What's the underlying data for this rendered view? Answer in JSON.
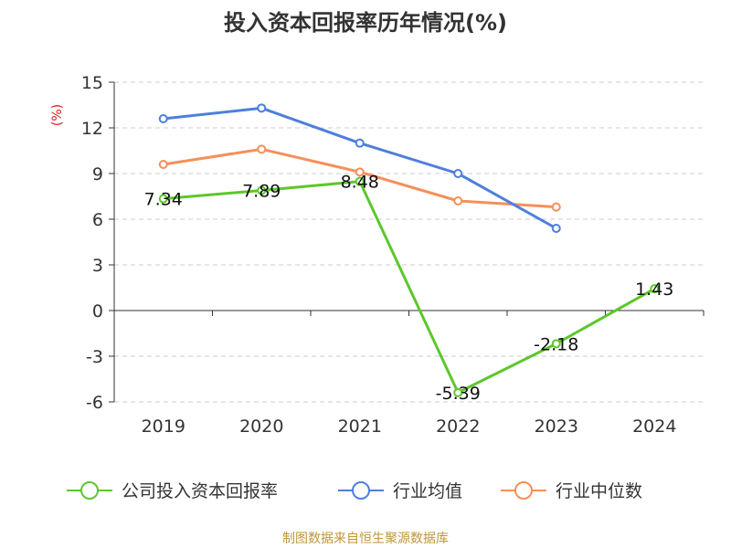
{
  "chart_data": {
    "type": "line",
    "title": "投入资本回报率历年情况(%)",
    "ylabel": "(%)",
    "categories": [
      "2019",
      "2020",
      "2021",
      "2022",
      "2023",
      "2024"
    ],
    "ylim": [
      -6,
      15
    ],
    "yticks": [
      15,
      12,
      9,
      6,
      3,
      0,
      -3,
      -6
    ],
    "grid": true,
    "legend_position": "bottom",
    "series": [
      {
        "name": "公司投入资本回报率",
        "color": "#5cc72c",
        "values": [
          7.34,
          7.89,
          8.48,
          -5.39,
          -2.18,
          1.43
        ],
        "labels": [
          "7.34",
          "7.89",
          "8.48",
          "-5.39",
          "-2.18",
          "1.43"
        ]
      },
      {
        "name": "行业均值",
        "color": "#4e7fdc",
        "values": [
          12.6,
          13.3,
          11.0,
          9.0,
          5.4,
          null
        ]
      },
      {
        "name": "行业中位数",
        "color": "#f5905a",
        "values": [
          9.6,
          10.6,
          9.1,
          7.2,
          6.8,
          null
        ]
      }
    ]
  },
  "source": "制图数据来自恒生聚源数据库"
}
